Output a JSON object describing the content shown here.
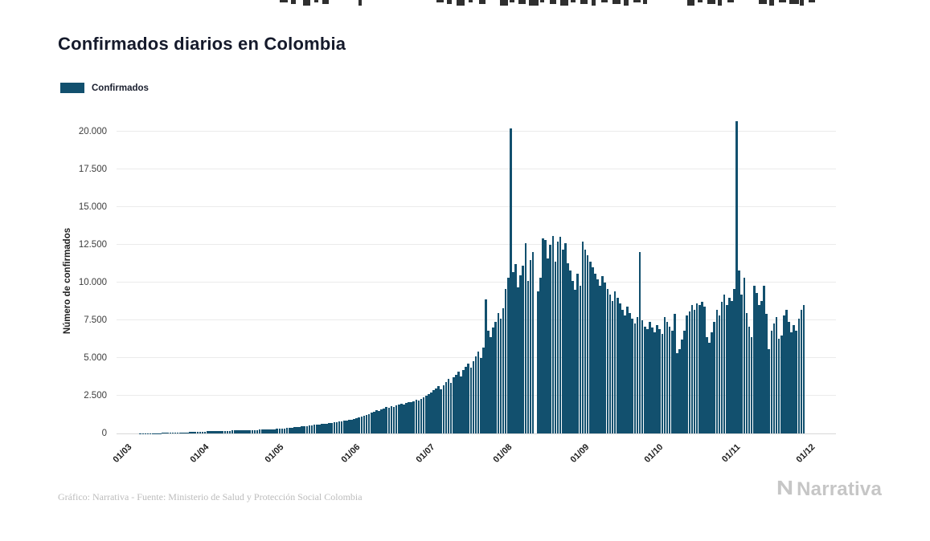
{
  "page": {
    "title": "Confirmados diarios en Colombia",
    "footer_source": "Gráfico: Narrativa - Fuente: Ministerio de Salud y Protección Social Colombia",
    "brand_name": "Narrativa"
  },
  "legend": {
    "label": "Confirmados",
    "color": "#12506E"
  },
  "chart_data": {
    "type": "bar",
    "title": "Confirmados diarios en Colombia",
    "xlabel": "",
    "ylabel": "Número de confirmados",
    "ylim": [
      0,
      20000
    ],
    "grid": true,
    "legend_position": "top-left",
    "bar_color": "#12506E",
    "background": "#ffffff",
    "gridline_color": "#ebebeb",
    "y_tick_values": [
      0,
      2500,
      5000,
      7500,
      10000,
      12500,
      15000,
      17500,
      20000
    ],
    "y_ticks": [
      "0",
      "2.500",
      "5.000",
      "7.500",
      "10.000",
      "12.500",
      "15.000",
      "17.500",
      "20.000"
    ],
    "days_domain": 275,
    "x_ticks": [
      {
        "label": "01/03",
        "day": 0
      },
      {
        "label": "01/04",
        "day": 31
      },
      {
        "label": "01/05",
        "day": 61
      },
      {
        "label": "01/06",
        "day": 92
      },
      {
        "label": "01/07",
        "day": 122
      },
      {
        "label": "01/08",
        "day": 153
      },
      {
        "label": "01/09",
        "day": 184
      },
      {
        "label": "01/10",
        "day": 214
      },
      {
        "label": "01/11",
        "day": 245
      },
      {
        "label": "01/12",
        "day": 275
      }
    ],
    "series": [
      {
        "name": "Confirmados",
        "start_label": "01/03",
        "values": [
          2,
          1,
          2,
          3,
          4,
          5,
          6,
          8,
          10,
          12,
          15,
          18,
          22,
          26,
          30,
          34,
          38,
          42,
          46,
          50,
          55,
          60,
          65,
          70,
          78,
          85,
          92,
          100,
          108,
          115,
          125,
          130,
          140,
          150,
          145,
          155,
          165,
          160,
          170,
          180,
          175,
          185,
          195,
          190,
          200,
          210,
          205,
          215,
          225,
          220,
          230,
          240,
          235,
          245,
          255,
          250,
          260,
          270,
          265,
          275,
          295,
          305,
          320,
          335,
          350,
          365,
          380,
          400,
          420,
          440,
          460,
          480,
          500,
          520,
          540,
          560,
          580,
          600,
          620,
          640,
          660,
          685,
          710,
          735,
          760,
          785,
          810,
          835,
          860,
          885,
          910,
          950,
          1000,
          1060,
          1120,
          1180,
          1240,
          1300,
          1380,
          1460,
          1540,
          1500,
          1580,
          1660,
          1780,
          1720,
          1800,
          1760,
          1840,
          1900,
          1980,
          1940,
          2020,
          2100,
          2060,
          2150,
          2240,
          2200,
          2300,
          2400,
          2500,
          2600,
          2700,
          2850,
          3000,
          3150,
          2950,
          3200,
          3400,
          3600,
          3350,
          3700,
          3900,
          4100,
          3800,
          4200,
          4400,
          4650,
          4350,
          4800,
          5100,
          5400,
          5000,
          5700,
          8900,
          6800,
          6400,
          7000,
          7400,
          8000,
          7600,
          8300,
          9600,
          10300,
          20200,
          10700,
          11200,
          9700,
          10500,
          11100,
          12600,
          10100,
          11500,
          12000,
          0,
          9400,
          10300,
          12900,
          12800,
          11600,
          12500,
          13100,
          11400,
          12700,
          13050,
          12200,
          12600,
          11300,
          10800,
          10100,
          9500,
          10600,
          9800,
          12700,
          12200,
          11800,
          11400,
          11000,
          10600,
          10200,
          9800,
          10400,
          10000,
          9600,
          9200,
          8800,
          9400,
          9000,
          8600,
          8200,
          7800,
          8400,
          8000,
          7600,
          7300,
          7700,
          12000,
          7500,
          7100,
          6900,
          7400,
          7000,
          6700,
          7200,
          6900,
          6600,
          7700,
          7400,
          7100,
          6800,
          7900,
          5300,
          5600,
          6200,
          6800,
          7800,
          8100,
          8500,
          8200,
          8600,
          8500,
          8700,
          8400,
          6400,
          6000,
          6700,
          7400,
          8200,
          7800,
          8700,
          9200,
          8500,
          9000,
          8800,
          9600,
          20700,
          10800,
          9200,
          10300,
          8000,
          7100,
          6400,
          9800,
          9300,
          8500,
          8800,
          9800,
          7900,
          5600,
          6800,
          7300,
          7700,
          6300,
          6500,
          7800,
          8200,
          7400,
          6700,
          7200,
          6800,
          7600,
          8200,
          8500
        ]
      }
    ]
  }
}
